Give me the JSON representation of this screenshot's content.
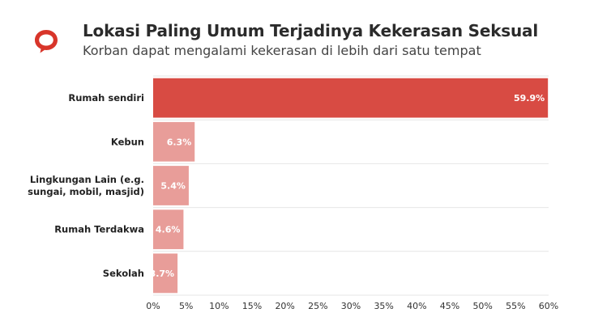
{
  "header": {
    "title": "Lokasi Paling Umum Terjadinya Kekerasan Seksual",
    "subtitle": "Korban dapat mengalami kekerasan di lebih dari satu tempat",
    "logo_icon": "speech-bubble-logo"
  },
  "colors": {
    "highlight": "#d84b43",
    "muted": "#e89d99",
    "grid": "#e6e6e6"
  },
  "chart_data": {
    "type": "bar",
    "orientation": "horizontal",
    "categories": [
      "Rumah sendiri",
      "Kebun",
      "Lingkungan Lain (e.g. sungai, mobil, masjid)",
      "Rumah Terdakwa",
      "Sekolah"
    ],
    "values": [
      59.9,
      6.3,
      5.4,
      4.6,
      3.7
    ],
    "value_labels": [
      "59.9%",
      "6.3%",
      "5.4%",
      "4.6%",
      "3.7%"
    ],
    "xlim": [
      0,
      60
    ],
    "ticks": [
      0,
      5,
      10,
      15,
      20,
      25,
      30,
      35,
      40,
      45,
      50,
      55,
      60
    ],
    "tick_labels": [
      "0%",
      "5%",
      "10%",
      "15%",
      "20%",
      "25%",
      "30%",
      "35%",
      "40%",
      "45%",
      "50%",
      "55%",
      "60%"
    ],
    "title": "Lokasi Paling Umum Terjadinya Kekerasan Seksual",
    "subtitle": "Korban dapat mengalami kekerasan di lebih dari satu tempat",
    "xlabel": "",
    "ylabel": "",
    "grid": true,
    "legend": "none"
  }
}
